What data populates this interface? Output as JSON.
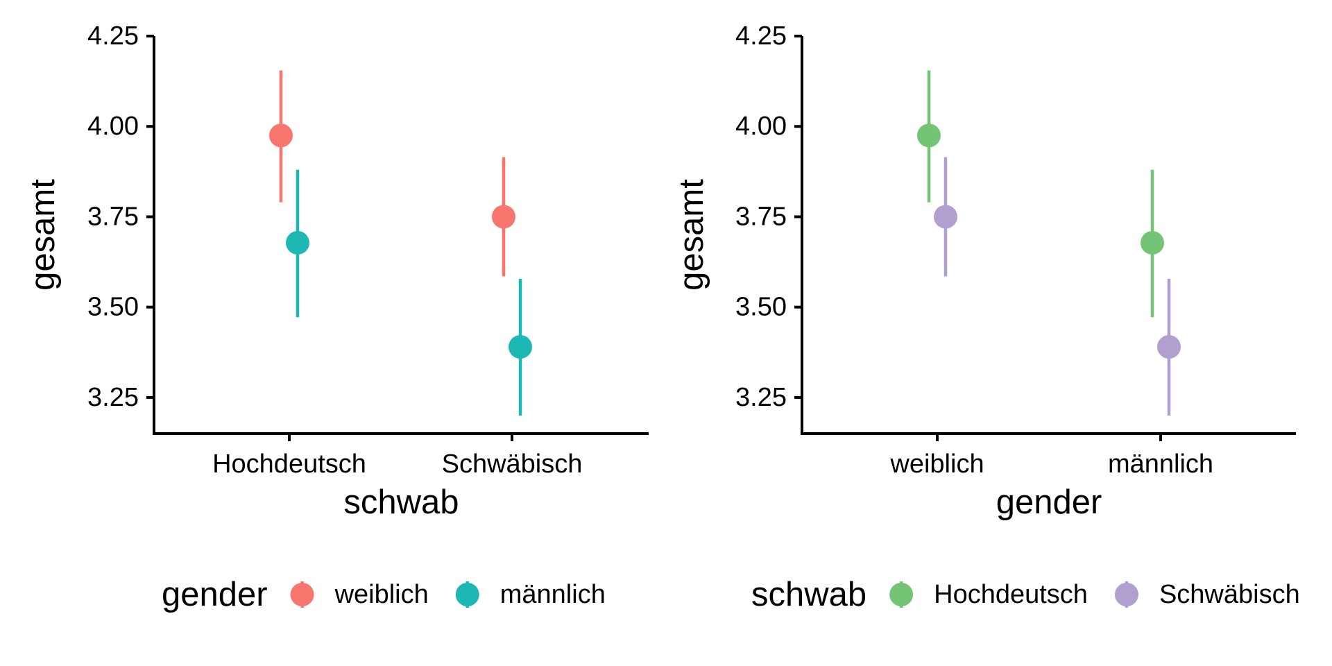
{
  "chart_data": [
    {
      "type": "scatter",
      "subtype": "point-range",
      "xlabel": "schwab",
      "ylabel": "gesamt",
      "categories": [
        "Hochdeutsch",
        "Schwäbisch"
      ],
      "ylim": [
        3.15,
        4.25
      ],
      "yticks": [
        "3.25",
        "3.50",
        "3.75",
        "4.00",
        "4.25"
      ],
      "grid": false,
      "legend": {
        "title": "gender",
        "position": "bottom"
      },
      "series": [
        {
          "name": "weiblich",
          "color": "#F8766D",
          "values": [
            3.975,
            3.75
          ],
          "lower": [
            3.79,
            3.585
          ],
          "upper": [
            4.155,
            3.915
          ]
        },
        {
          "name": "männlich",
          "color": "#1DB7B4",
          "values": [
            3.678,
            3.39
          ],
          "lower": [
            3.472,
            3.2
          ],
          "upper": [
            3.88,
            3.578
          ]
        }
      ]
    },
    {
      "type": "scatter",
      "subtype": "point-range",
      "xlabel": "gender",
      "ylabel": "gesamt",
      "categories": [
        "weiblich",
        "männlich"
      ],
      "ylim": [
        3.15,
        4.25
      ],
      "yticks": [
        "3.25",
        "3.50",
        "3.75",
        "4.00",
        "4.25"
      ],
      "grid": false,
      "legend": {
        "title": "schwab",
        "position": "bottom"
      },
      "series": [
        {
          "name": "Hochdeutsch",
          "color": "#74C476",
          "values": [
            3.975,
            3.678
          ],
          "lower": [
            3.79,
            3.472
          ],
          "upper": [
            4.155,
            3.88
          ]
        },
        {
          "name": "Schwäbisch",
          "color": "#B09FCF",
          "values": [
            3.75,
            3.39
          ],
          "lower": [
            3.585,
            3.2
          ],
          "upper": [
            3.915,
            3.578
          ]
        }
      ]
    }
  ]
}
